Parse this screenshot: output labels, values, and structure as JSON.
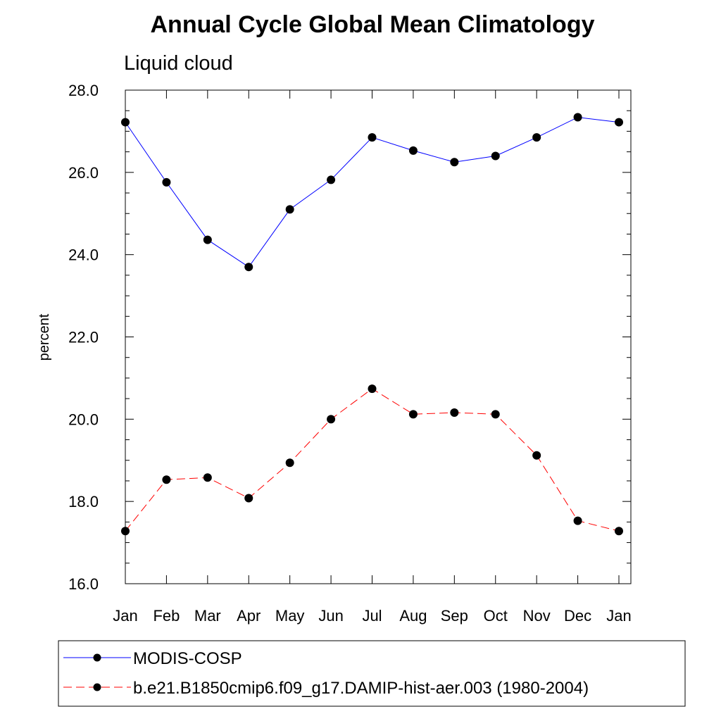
{
  "chart_data": {
    "type": "line",
    "title": "Annual Cycle Global Mean Climatology",
    "subtitle": "Liquid cloud",
    "xlabel": "",
    "ylabel": "percent",
    "categories": [
      "Jan",
      "Feb",
      "Mar",
      "Apr",
      "May",
      "Jun",
      "Jul",
      "Aug",
      "Sep",
      "Oct",
      "Nov",
      "Dec",
      "Jan"
    ],
    "yticks": [
      "16.0",
      "18.0",
      "20.0",
      "22.0",
      "24.0",
      "26.0",
      "28.0"
    ],
    "ylim": [
      16,
      28
    ],
    "grid": false,
    "legend_position": "bottom",
    "series": [
      {
        "name": "MODIS-COSP",
        "color": "#0000ff",
        "line_style": "solid",
        "marker": "filled-circle",
        "values": [
          27.22,
          25.76,
          24.36,
          23.7,
          25.1,
          25.82,
          26.85,
          26.53,
          26.25,
          26.4,
          26.85,
          27.34,
          27.22
        ]
      },
      {
        "name": "b.e21.B1850cmip6.f09_g17.DAMIP-hist-aer.003 (1980-2004)",
        "color": "#ff0000",
        "line_style": "dashed",
        "marker": "filled-circle",
        "values": [
          17.28,
          18.53,
          18.58,
          18.08,
          18.94,
          20.0,
          20.74,
          20.12,
          20.16,
          20.12,
          19.12,
          17.53,
          17.28
        ]
      }
    ]
  }
}
